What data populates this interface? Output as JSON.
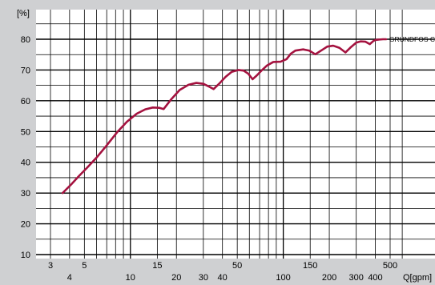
{
  "chart_data": {
    "type": "line",
    "title": "",
    "xlabel": "Q[gpm]",
    "ylabel": "[%]",
    "x_scale": "log",
    "xlim": [
      3,
      600
    ],
    "ylim": [
      10,
      88
    ],
    "grid": true,
    "background_color": "#cfd0d2",
    "plot_color": "#ffffff",
    "grid_color": "#000000",
    "line_color": "#a4123f",
    "x_ticks_upper": [
      "3",
      "5",
      "15",
      "50",
      "150",
      "500"
    ],
    "x_ticks_lower": [
      "4",
      "10",
      "20",
      "30",
      "40",
      "100",
      "200",
      "300",
      "400"
    ],
    "y_ticks": [
      "10",
      "20",
      "30",
      "40",
      "50",
      "60",
      "70",
      "80"
    ],
    "series": [
      {
        "name": "GRUNDFOS C",
        "x": [
          3.6,
          4.1,
          4.6,
          5.2,
          6.0,
          7.0,
          8.2,
          9.5,
          11,
          12.5,
          14,
          15.5,
          16.5,
          18.5,
          21,
          24,
          27,
          30,
          33,
          35,
          38,
          42,
          46,
          51,
          55,
          59,
          63,
          67,
          72,
          78,
          86,
          96,
          105,
          112,
          120,
          135,
          148,
          162,
          178,
          194,
          212,
          233,
          255,
          278,
          300,
          320,
          345,
          368,
          390,
          405,
          425,
          450,
          470
        ],
        "y": [
          30,
          32.8,
          35.5,
          38.2,
          41.5,
          45.5,
          49.8,
          53.2,
          55.8,
          57.2,
          57.8,
          57.7,
          57.3,
          60.5,
          63.5,
          65.2,
          65.8,
          65.5,
          64.5,
          63.8,
          65.5,
          67.8,
          69.4,
          70.0,
          69.8,
          68.8,
          67.0,
          68.2,
          69.8,
          71.4,
          72.6,
          72.7,
          73.5,
          75.3,
          76.3,
          76.7,
          76.3,
          75.1,
          76.4,
          77.6,
          77.9,
          77.2,
          75.7,
          77.5,
          78.9,
          79.3,
          79.2,
          78.4,
          79.5,
          79.8,
          79.9,
          80.0,
          80.0
        ]
      }
    ]
  }
}
